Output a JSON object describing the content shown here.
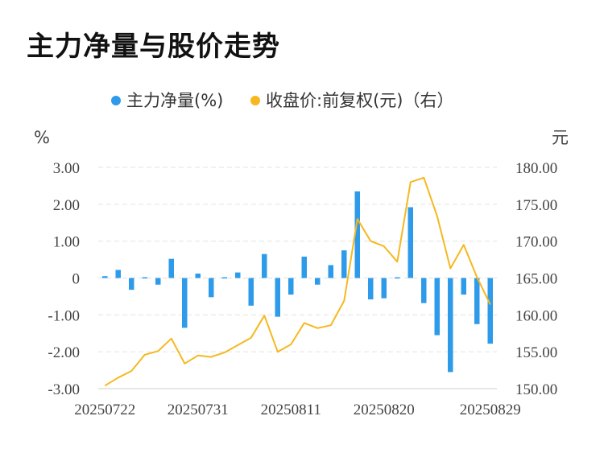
{
  "chart_data": {
    "type": "bar+line",
    "title": "主力净量与股价走势",
    "legend": [
      "主力净量(%)",
      "收盘价:前复权(元)（右）"
    ],
    "left_unit": "%",
    "right_unit": "元",
    "left_ylim": [
      -3,
      3
    ],
    "right_ylim": [
      150,
      180
    ],
    "left_ticks": [
      "3.00",
      "2.00",
      "1.00",
      "0",
      "-1.00",
      "-2.00",
      "-3.00"
    ],
    "right_ticks": [
      "180.00",
      "175.00",
      "170.00",
      "165.00",
      "160.00",
      "155.00",
      "150.00"
    ],
    "x_tick_labels": [
      "20250722",
      "20250731",
      "20250811",
      "20250820",
      "20250829"
    ],
    "x_tick_indices": [
      0,
      7,
      14,
      21,
      29
    ],
    "bar_values": [
      0.05,
      0.22,
      -0.32,
      0.02,
      -0.18,
      0.52,
      -1.35,
      0.12,
      -0.52,
      0.02,
      0.15,
      -0.75,
      0.65,
      -1.05,
      -0.45,
      0.58,
      -0.18,
      0.35,
      0.75,
      2.35,
      -0.58,
      -0.55,
      0.02,
      1.92,
      -0.68,
      -1.55,
      -2.55,
      -0.45,
      -1.25,
      -1.78
    ],
    "line_values": [
      150.4,
      151.5,
      152.4,
      154.6,
      155.1,
      156.8,
      153.4,
      154.5,
      154.3,
      154.9,
      155.9,
      156.9,
      159.9,
      155.0,
      156.0,
      158.9,
      158.2,
      158.6,
      161.9,
      173.0,
      170.0,
      169.3,
      167.2,
      178.0,
      178.6,
      173.4,
      166.3,
      169.5,
      165.1,
      161.4
    ],
    "colors": {
      "bar": "#2e9bea",
      "line": "#f5b81f",
      "grid": "#e6e6e6"
    }
  }
}
